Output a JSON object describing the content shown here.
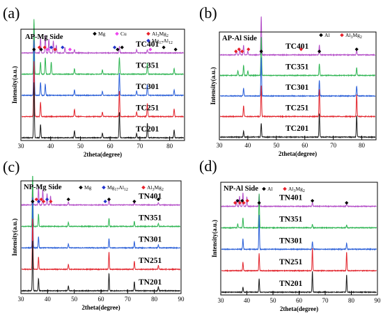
{
  "chart_data": [
    {
      "type": "line",
      "panel_label": "(a)",
      "title": "AP-Mg Side",
      "xlabel": "2theta(degree)",
      "ylabel": "Intensity(a.u.)",
      "xlim": [
        30,
        85
      ],
      "xticks": [
        "30",
        "40",
        "50",
        "60",
        "70",
        "80"
      ],
      "legend": [
        {
          "label": "Mg",
          "marker": "diamond",
          "color": "#000000"
        },
        {
          "label": "Cu",
          "marker": "diamond",
          "color": "#ee44ee"
        },
        {
          "label": "Al3Mg2",
          "marker": "diamond",
          "color": "#e8202a"
        },
        {
          "label": "Mg17Al12",
          "marker": "diamond",
          "color": "#2233cc"
        }
      ],
      "series": [
        {
          "label": "TC401",
          "color": "#b44ec8",
          "peaks": [
            [
              34.4,
              0.5
            ],
            [
              36.6,
              0.28
            ],
            [
              38.2,
              0.32
            ],
            [
              39.4,
              0.25
            ],
            [
              40.9,
              0.22
            ],
            [
              41.9,
              0.14
            ],
            [
              44.8,
              0.1
            ],
            [
              48.0,
              0.06
            ],
            [
              63.1,
              0.12
            ],
            [
              68.9,
              0.06
            ],
            [
              72.5,
              0.06
            ]
          ]
        },
        {
          "label": "TC351",
          "color": "#2fb553",
          "peaks": [
            [
              34.4,
              1.0
            ],
            [
              36.6,
              0.22
            ],
            [
              38.2,
              0.3
            ],
            [
              40.2,
              0.22
            ],
            [
              48.0,
              0.1
            ],
            [
              57.4,
              0.08
            ],
            [
              63.1,
              0.3
            ],
            [
              72.5,
              0.2
            ],
            [
              81.5,
              0.1
            ]
          ]
        },
        {
          "label": "TC301",
          "color": "#2a5fd8",
          "peaks": [
            [
              34.4,
              1.0
            ],
            [
              36.6,
              0.24
            ],
            [
              38.2,
              0.2
            ],
            [
              48.0,
              0.1
            ],
            [
              57.4,
              0.07
            ],
            [
              63.1,
              0.4
            ],
            [
              68.9,
              0.08
            ],
            [
              72.5,
              0.2
            ],
            [
              81.5,
              0.1
            ]
          ]
        },
        {
          "label": "TC251",
          "color": "#e2242c",
          "peaks": [
            [
              34.4,
              1.0
            ],
            [
              36.6,
              0.26
            ],
            [
              48.0,
              0.13
            ],
            [
              57.4,
              0.08
            ],
            [
              63.1,
              0.46
            ],
            [
              68.9,
              0.08
            ],
            [
              72.5,
              0.24
            ],
            [
              81.5,
              0.14
            ]
          ]
        },
        {
          "label": "TC201",
          "color": "#1a1a1a",
          "peaks": [
            [
              34.4,
              1.0
            ],
            [
              36.6,
              0.24
            ],
            [
              48.0,
              0.13
            ],
            [
              57.4,
              0.08
            ],
            [
              63.1,
              0.46
            ],
            [
              68.9,
              0.08
            ],
            [
              72.5,
              0.26
            ],
            [
              81.5,
              0.14
            ]
          ]
        }
      ],
      "phase_markers": [
        {
          "x": 34.4,
          "phase": "Mg"
        },
        {
          "x": 36.2,
          "phase": "Al3Mg2"
        },
        {
          "x": 36.8,
          "phase": "Mg"
        },
        {
          "x": 38.0,
          "phase": "Al3Mg2"
        },
        {
          "x": 39.0,
          "phase": "Cu"
        },
        {
          "x": 40.2,
          "phase": "Mg17Al12"
        },
        {
          "x": 41.5,
          "phase": "Al3Mg2"
        },
        {
          "x": 44.0,
          "phase": "Mg17Al12"
        },
        {
          "x": 46.5,
          "phase": "Cu"
        },
        {
          "x": 61.5,
          "phase": "Mg17Al12"
        },
        {
          "x": 62.5,
          "phase": "Mg"
        },
        {
          "x": 64.0,
          "phase": "Mg"
        },
        {
          "x": 73.5,
          "phase": "Cu"
        },
        {
          "x": 78.0,
          "phase": "Mg"
        },
        {
          "x": 82.0,
          "phase": "Mg"
        }
      ]
    },
    {
      "type": "line",
      "panel_label": "(b)",
      "title": "AP-Al Side",
      "xlabel": "2theta(degree)",
      "ylabel": "Intensity(a.u.)",
      "xlim": [
        30,
        85
      ],
      "xticks": [
        "30",
        "40",
        "50",
        "60",
        "70",
        "80"
      ],
      "legend": [
        {
          "label": "Al",
          "marker": "diamond",
          "color": "#000000"
        },
        {
          "label": "Al3Mg2",
          "marker": "diamond",
          "color": "#e8202a"
        }
      ],
      "series": [
        {
          "label": "TC401",
          "color": "#b44ec8",
          "peaks": [
            [
              36.0,
              0.12
            ],
            [
              37.2,
              0.15
            ],
            [
              38.5,
              0.25
            ],
            [
              40.0,
              0.1
            ],
            [
              44.7,
              1.0
            ],
            [
              65.1,
              0.25
            ],
            [
              78.2,
              0.12
            ]
          ]
        },
        {
          "label": "TC351",
          "color": "#2fb553",
          "peaks": [
            [
              36.5,
              0.12
            ],
            [
              38.5,
              0.26
            ],
            [
              40.0,
              0.12
            ],
            [
              44.7,
              1.0
            ],
            [
              65.1,
              0.3
            ],
            [
              78.2,
              0.2
            ]
          ]
        },
        {
          "label": "TC301",
          "color": "#2a5fd8",
          "peaks": [
            [
              38.5,
              0.2
            ],
            [
              44.7,
              1.0
            ],
            [
              65.1,
              0.4
            ],
            [
              78.2,
              0.25
            ]
          ]
        },
        {
          "label": "TC251",
          "color": "#e2242c",
          "peaks": [
            [
              38.5,
              0.28
            ],
            [
              44.7,
              0.8
            ],
            [
              65.1,
              0.7
            ],
            [
              78.2,
              0.56
            ]
          ]
        },
        {
          "label": "TC201",
          "color": "#1a1a1a",
          "peaks": [
            [
              38.5,
              0.15
            ],
            [
              44.7,
              0.35
            ],
            [
              65.1,
              0.6
            ],
            [
              78.2,
              0.55
            ]
          ]
        }
      ],
      "phase_markers": [
        {
          "x": 35.8,
          "phase": "Al3Mg2"
        },
        {
          "x": 36.9,
          "phase": "Al3Mg2"
        },
        {
          "x": 38.0,
          "phase": "Al3Mg2"
        },
        {
          "x": 40.2,
          "phase": "Al3Mg2"
        },
        {
          "x": 44.7,
          "phase": "Al"
        },
        {
          "x": 58.7,
          "phase": "Al3Mg2"
        },
        {
          "x": 65.1,
          "phase": "Al"
        },
        {
          "x": 78.2,
          "phase": "Al"
        }
      ]
    },
    {
      "type": "line",
      "panel_label": "(c)",
      "title": "NP-Mg Side",
      "xlabel": "2theta(degree)",
      "ylabel": "Intensity(a.u.)",
      "xlim": [
        30,
        90
      ],
      "xticks": [
        "30",
        "40",
        "50",
        "60",
        "70",
        "80",
        "90"
      ],
      "legend": [
        {
          "label": "Mg",
          "marker": "diamond",
          "color": "#000000"
        },
        {
          "label": "Mg17Al12",
          "marker": "diamond",
          "color": "#2233cc"
        },
        {
          "label": "Al3Mg2",
          "marker": "diamond",
          "color": "#e8202a"
        }
      ],
      "series": [
        {
          "label": "TN401",
          "color": "#b44ec8",
          "peaks": [
            [
              34.4,
              0.45
            ],
            [
              36.6,
              0.35
            ],
            [
              38.2,
              0.3
            ],
            [
              39.8,
              0.22
            ],
            [
              41.1,
              0.18
            ],
            [
              47.8,
              0.06
            ],
            [
              63.0,
              0.12
            ],
            [
              72.5,
              0.06
            ],
            [
              81.5,
              0.05
            ]
          ]
        },
        {
          "label": "TN351",
          "color": "#2fb553",
          "peaks": [
            [
              34.4,
              1.0
            ],
            [
              36.6,
              0.24
            ],
            [
              47.8,
              0.08
            ],
            [
              63.0,
              0.16
            ],
            [
              72.5,
              0.1
            ],
            [
              81.5,
              0.06
            ]
          ]
        },
        {
          "label": "TN301",
          "color": "#2a5fd8",
          "peaks": [
            [
              34.4,
              1.0
            ],
            [
              36.6,
              0.22
            ],
            [
              47.8,
              0.08
            ],
            [
              63.0,
              0.18
            ],
            [
              72.5,
              0.12
            ],
            [
              81.5,
              0.06
            ]
          ]
        },
        {
          "label": "TN251",
          "color": "#e2242c",
          "peaks": [
            [
              34.4,
              1.0
            ],
            [
              36.6,
              0.24
            ],
            [
              47.8,
              0.1
            ],
            [
              63.0,
              0.34
            ],
            [
              72.5,
              0.16
            ],
            [
              81.5,
              0.08
            ]
          ]
        },
        {
          "label": "TN201",
          "color": "#1a1a1a",
          "peaks": [
            [
              34.4,
              1.0
            ],
            [
              36.6,
              0.24
            ],
            [
              47.8,
              0.1
            ],
            [
              63.0,
              0.34
            ],
            [
              72.5,
              0.18
            ],
            [
              81.5,
              0.08
            ]
          ]
        }
      ],
      "phase_markers": [
        {
          "x": 34.4,
          "phase": "Mg"
        },
        {
          "x": 35.8,
          "phase": "Al3Mg2"
        },
        {
          "x": 36.7,
          "phase": "Mg17Al12"
        },
        {
          "x": 37.6,
          "phase": "Al3Mg2"
        },
        {
          "x": 38.5,
          "phase": "Al3Mg2"
        },
        {
          "x": 39.8,
          "phase": "Mg17Al12"
        },
        {
          "x": 41.2,
          "phase": "Al3Mg2"
        },
        {
          "x": 47.8,
          "phase": "Mg"
        },
        {
          "x": 61.6,
          "phase": "Mg17Al12"
        },
        {
          "x": 63.0,
          "phase": "Mg"
        },
        {
          "x": 72.5,
          "phase": "Mg"
        },
        {
          "x": 81.5,
          "phase": "Mg"
        }
      ]
    },
    {
      "type": "line",
      "panel_label": "(d)",
      "title": "NP-Al Side",
      "xlabel": "2theta(degree)",
      "ylabel": "Intensity(a.u.)",
      "xlim": [
        30,
        90
      ],
      "xticks": [
        "30",
        "40",
        "50",
        "60",
        "70",
        "80",
        "90"
      ],
      "legend": [
        {
          "label": "Al",
          "marker": "diamond",
          "color": "#000000"
        },
        {
          "label": "Al3Mg2",
          "marker": "diamond",
          "color": "#e8202a"
        }
      ],
      "series": [
        {
          "label": "TN401",
          "color": "#b44ec8",
          "peaks": [
            [
              36.0,
              0.2
            ],
            [
              37.2,
              0.3
            ],
            [
              38.5,
              0.4
            ],
            [
              40.0,
              0.28
            ],
            [
              44.7,
              0.35
            ],
            [
              65.1,
              0.12
            ],
            [
              78.2,
              0.08
            ]
          ]
        },
        {
          "label": "TN351",
          "color": "#2fb553",
          "peaks": [
            [
              36.5,
              0.12
            ],
            [
              38.5,
              0.3
            ],
            [
              44.7,
              1.0
            ],
            [
              65.1,
              0.1
            ],
            [
              78.2,
              0.08
            ]
          ]
        },
        {
          "label": "TN301",
          "color": "#2a5fd8",
          "peaks": [
            [
              38.5,
              0.3
            ],
            [
              44.7,
              1.0
            ],
            [
              65.1,
              0.22
            ],
            [
              78.2,
              0.18
            ]
          ]
        },
        {
          "label": "TN251",
          "color": "#e2242c",
          "peaks": [
            [
              38.5,
              0.25
            ],
            [
              44.7,
              0.5
            ],
            [
              65.1,
              0.65
            ],
            [
              78.2,
              0.55
            ]
          ]
        },
        {
          "label": "TN201",
          "color": "#1a1a1a",
          "peaks": [
            [
              38.5,
              0.15
            ],
            [
              44.7,
              0.4
            ],
            [
              65.1,
              0.6
            ],
            [
              78.2,
              0.5
            ]
          ]
        }
      ],
      "phase_markers": [
        {
          "x": 35.5,
          "phase": "Al3Mg2"
        },
        {
          "x": 36.5,
          "phase": "Al"
        },
        {
          "x": 37.3,
          "phase": "Al3Mg2"
        },
        {
          "x": 38.2,
          "phase": "Al"
        },
        {
          "x": 38.8,
          "phase": "Al3Mg2"
        },
        {
          "x": 40.2,
          "phase": "Al3Mg2"
        },
        {
          "x": 44.7,
          "phase": "Al"
        },
        {
          "x": 65.1,
          "phase": "Al"
        },
        {
          "x": 78.2,
          "phase": "Al"
        }
      ]
    }
  ]
}
